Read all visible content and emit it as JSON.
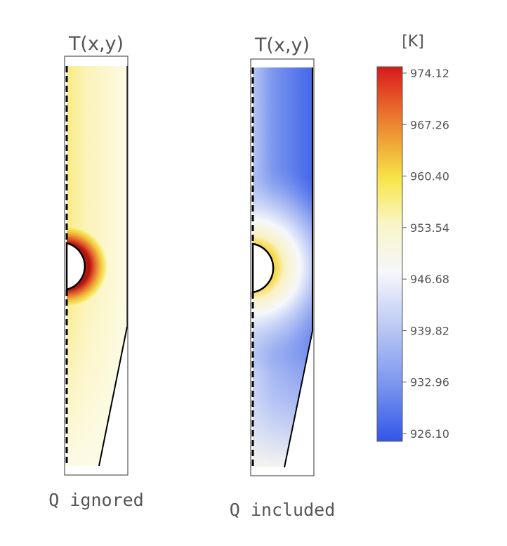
{
  "panels": [
    {
      "title": "T(x,y)",
      "caption": "Q ignored",
      "variant": "ignored"
    },
    {
      "title": "T(x,y)",
      "caption": "Q included",
      "variant": "included"
    }
  ],
  "colorbar": {
    "unit": "[K]",
    "ticks": [
      "974.12",
      "967.26",
      "960.40",
      "953.54",
      "946.68",
      "939.82",
      "932.96",
      "926.10"
    ],
    "colors": {
      "max": "#d7191c",
      "mid_high": "#f7e64a",
      "mid": "#fbfbf2",
      "low": "#3355ea"
    }
  }
}
